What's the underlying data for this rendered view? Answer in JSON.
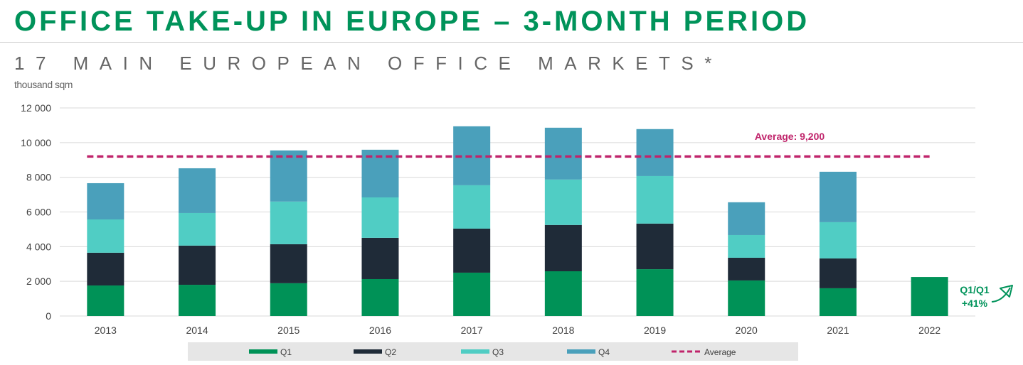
{
  "title": "OFFICE TAKE-UP IN EUROPE – 3-MONTH PERIOD",
  "subtitle": "17 MAIN EUROPEAN OFFICE MARKETS*",
  "chart_data": {
    "type": "bar",
    "stacked": true,
    "ylabel": "thousand sqm",
    "ylim": [
      0,
      12000
    ],
    "yticks": [
      0,
      2000,
      4000,
      6000,
      8000,
      10000,
      12000
    ],
    "ytick_labels": [
      "0",
      "2 000",
      "4 000",
      "6 000",
      "8 000",
      "10 000",
      "12 000"
    ],
    "grid": true,
    "legend_position": "bottom",
    "categories": [
      "2013",
      "2014",
      "2015",
      "2016",
      "2017",
      "2018",
      "2019",
      "2020",
      "2021",
      "2022"
    ],
    "series": [
      {
        "name": "Q1",
        "color": "#009257",
        "values": [
          1760,
          1800,
          1890,
          2130,
          2500,
          2580,
          2700,
          2050,
          1600,
          2250
        ]
      },
      {
        "name": "Q2",
        "color": "#1f2b38",
        "values": [
          1890,
          2260,
          2250,
          2380,
          2540,
          2670,
          2630,
          1310,
          1720,
          null
        ]
      },
      {
        "name": "Q3",
        "color": "#50cdc4",
        "values": [
          1920,
          1880,
          2460,
          2330,
          2500,
          2620,
          2740,
          1310,
          2090,
          null
        ]
      },
      {
        "name": "Q4",
        "color": "#4aa0bb",
        "values": [
          2090,
          2580,
          2950,
          2750,
          3400,
          2990,
          2710,
          1890,
          2910,
          null
        ]
      }
    ],
    "average": {
      "name": "Average",
      "value": 9200,
      "label": "Average: 9,200",
      "color": "#c0246b"
    },
    "annotation": {
      "line1": "Q1/Q1",
      "line2": "+41%",
      "color": "#00935a",
      "icon": "arrow-up-right-icon"
    }
  }
}
